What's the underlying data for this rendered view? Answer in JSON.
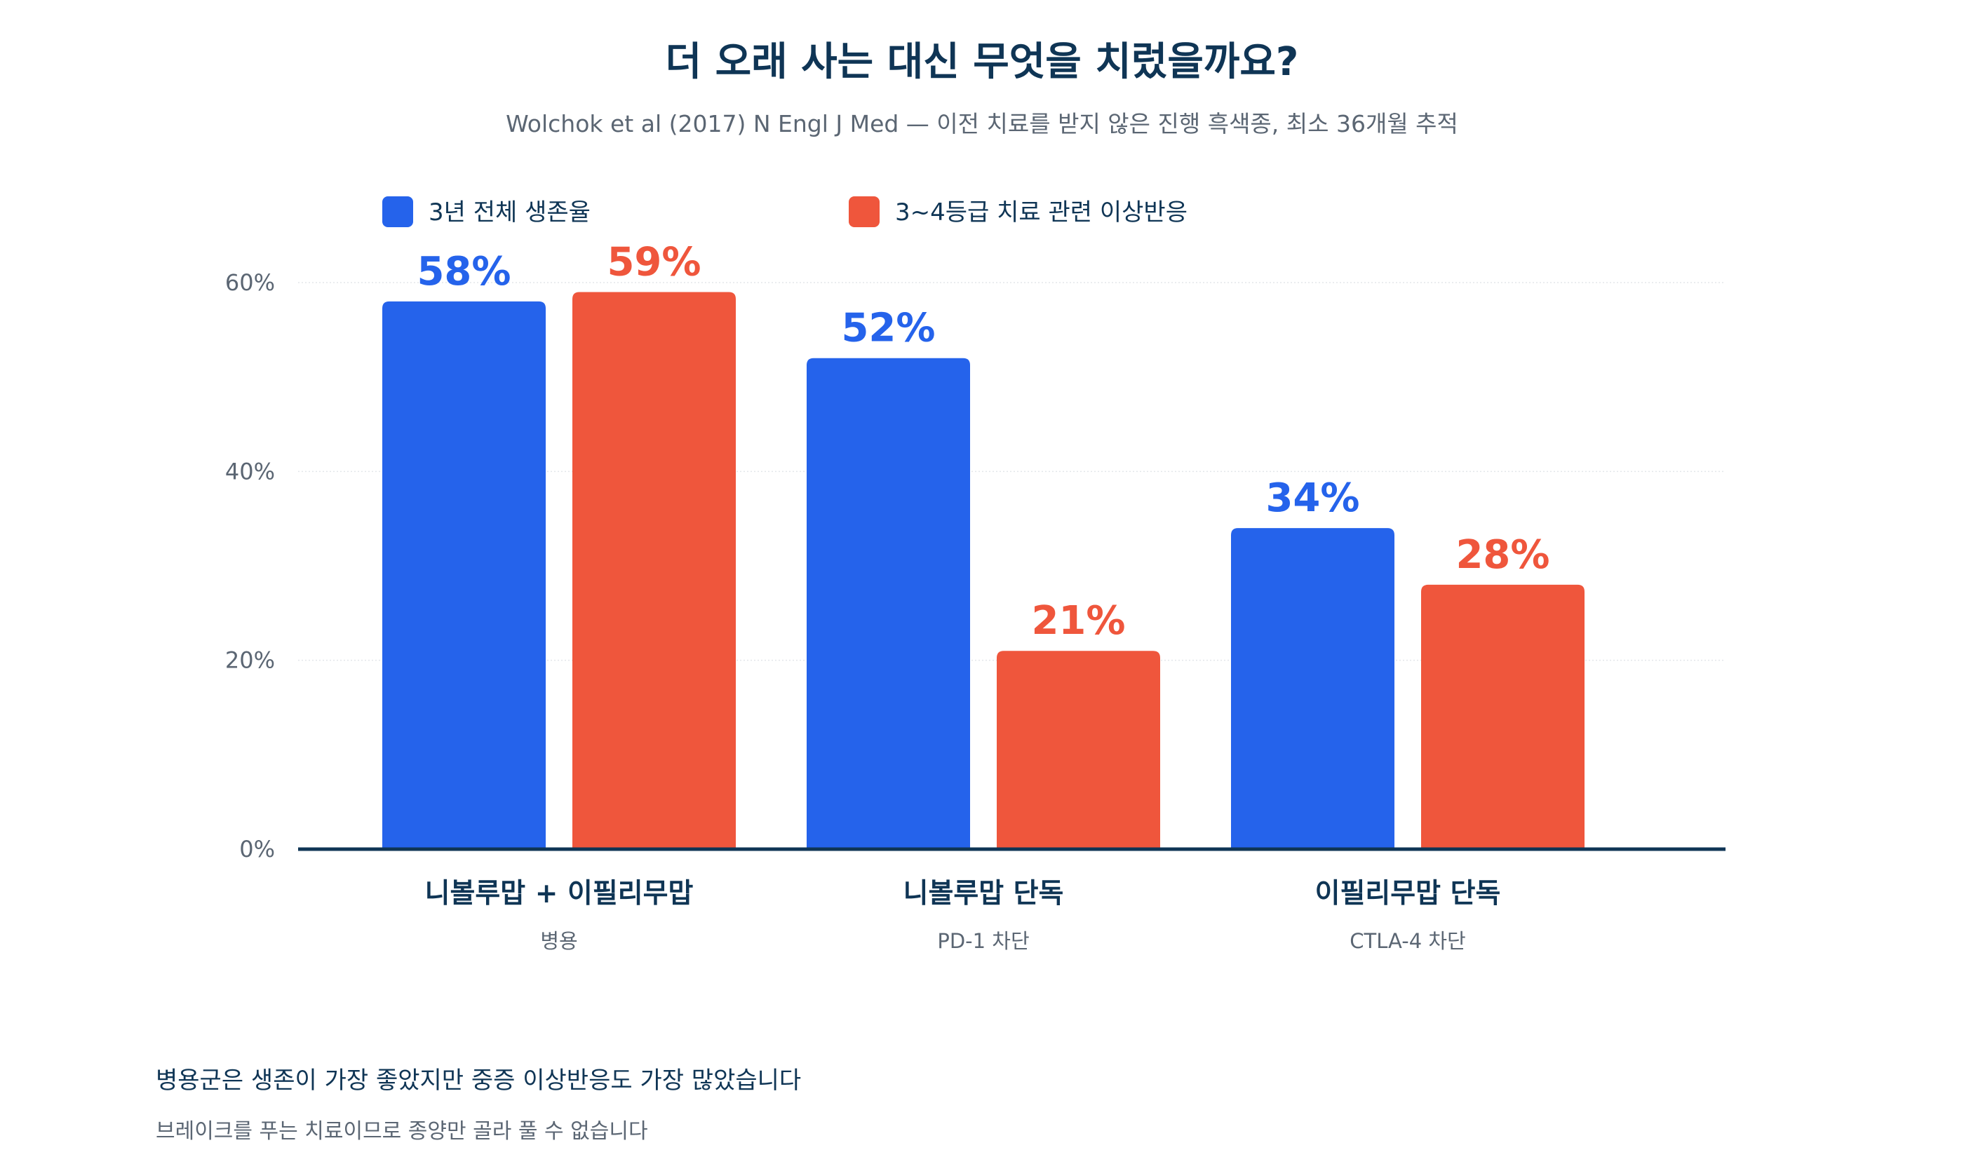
{
  "chart_data": {
    "type": "bar",
    "title": "더 오래 사는 대신 무엇을 치렀을까요?",
    "subtitle": "Wolchok et al (2017) N Engl J Med — 이전 치료를 받지 않은 진행 흑색종, 최소 36개월 추적",
    "categories": [
      "니볼루맙 + 이필리무맙",
      "니볼루맙 단독",
      "이필리무맙 단독"
    ],
    "category_sublabels": [
      "병용",
      "PD-1 차단",
      "CTLA-4 차단"
    ],
    "series": [
      {
        "name": "3년 전체 생존율",
        "values": [
          58,
          52,
          34
        ],
        "color": "#2563eb"
      },
      {
        "name": "3~4등급 치료 관련 이상반응",
        "values": [
          59,
          21,
          28
        ],
        "color": "#ef563c"
      }
    ],
    "value_suffix": "%",
    "ylim": [
      0,
      60
    ],
    "yticks": [
      0,
      20,
      40,
      60
    ],
    "ytick_labels": [
      "0%",
      "20%",
      "40%",
      "60%"
    ],
    "xlabel": "",
    "ylabel": "",
    "grid": true,
    "legend_position": "top-left"
  },
  "notes": {
    "main": "병용군은 생존이 가장 좋았지만 중증 이상반응도 가장 많았습니다",
    "sub": "브레이크를 푸는 치료이므로 종양만 골라 풀 수 없습니다"
  }
}
